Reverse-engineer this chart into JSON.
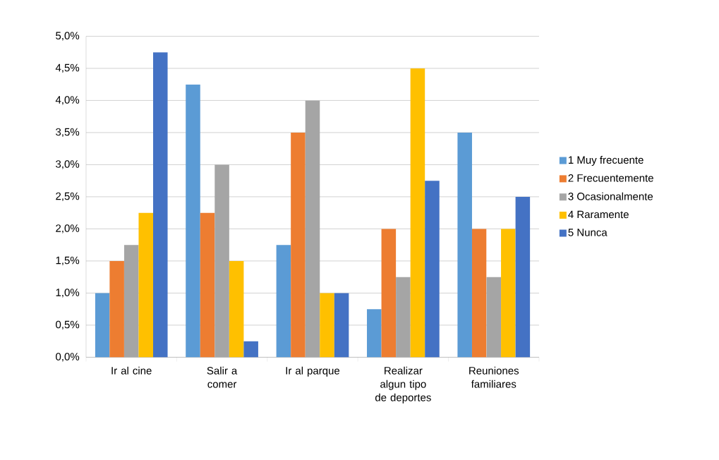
{
  "chart_data": {
    "type": "bar",
    "categories": [
      "Ir al cine",
      "Salir a comer",
      "Ir al parque",
      "Realizar algun tipo de deportes",
      "Reuniones familiares"
    ],
    "series": [
      {
        "name": "1 Muy frecuente",
        "color": "#5b9bd5",
        "values": [
          1.0,
          4.25,
          1.75,
          0.75,
          3.5
        ]
      },
      {
        "name": "2 Frecuentemente",
        "color": "#ed7d31",
        "values": [
          1.5,
          2.25,
          3.5,
          2.0,
          2.0
        ]
      },
      {
        "name": "3 Ocasionalmente",
        "color": "#a5a5a5",
        "values": [
          1.75,
          3.0,
          4.0,
          1.25,
          1.25
        ]
      },
      {
        "name": "4 Raramente",
        "color": "#ffc000",
        "values": [
          2.25,
          1.5,
          1.0,
          4.5,
          2.0
        ]
      },
      {
        "name": "5 Nunca",
        "color": "#4472c4",
        "values": [
          4.75,
          0.25,
          1.0,
          2.75,
          2.5
        ]
      }
    ],
    "ylim": [
      0,
      5
    ],
    "yticks": [
      {
        "value": 0,
        "label": "0,0%"
      },
      {
        "value": 0.5,
        "label": "0,5%"
      },
      {
        "value": 1,
        "label": "1,0%"
      },
      {
        "value": 1.5,
        "label": "1,5%"
      },
      {
        "value": 2,
        "label": "2,0%"
      },
      {
        "value": 2.5,
        "label": "2,5%"
      },
      {
        "value": 3,
        "label": "3,0%"
      },
      {
        "value": 3.5,
        "label": "3,5%"
      },
      {
        "value": 4,
        "label": "4,0%"
      },
      {
        "value": 4.5,
        "label": "4,5%"
      },
      {
        "value": 5,
        "label": "5,0%"
      }
    ],
    "grid": "y",
    "legend": "right"
  }
}
